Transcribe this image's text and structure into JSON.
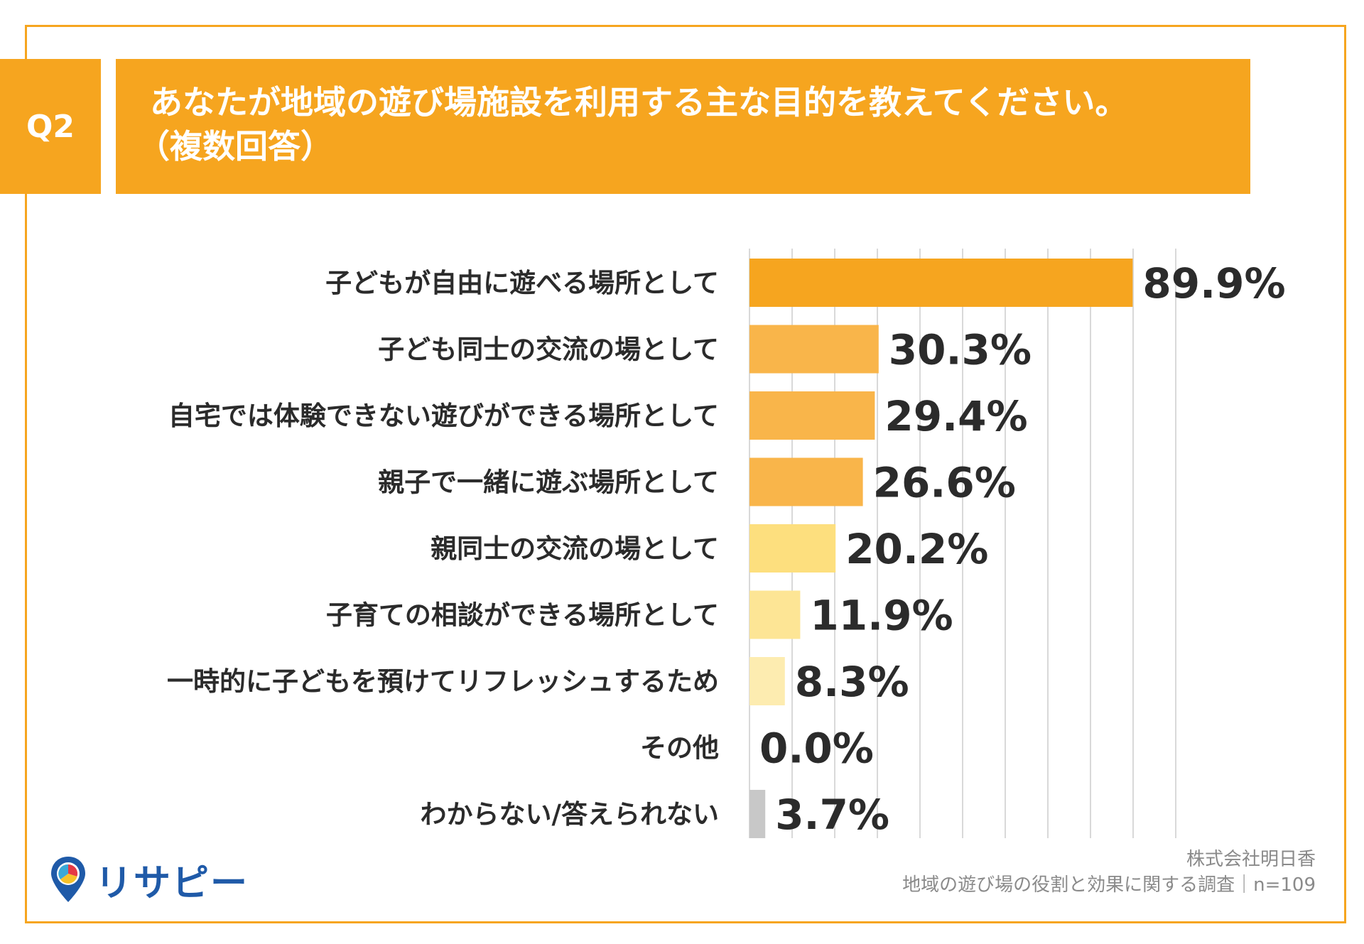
{
  "header": {
    "question_tag": "Q2",
    "title": "あなたが地域の遊び場施設を利用する主な目的を教えてください。",
    "subtitle": "（複数回答）"
  },
  "colors": {
    "frame": "#f6a51f",
    "header_bg": "#f6a51f",
    "gridline": "#d9d9d9",
    "bar_fills": [
      "#f6a51f",
      "#f9b54a",
      "#f9b54a",
      "#f9b54a",
      "#fddf7e",
      "#fde595",
      "#fdecb0",
      "#fdecb0",
      "#c8c8c8"
    ]
  },
  "chart_data": {
    "type": "bar",
    "orientation": "horizontal",
    "categories": [
      "子どもが自由に遊べる場所として",
      "子ども同士の交流の場として",
      "自宅では体験できない遊びができる場所として",
      "親子で一緒に遊ぶ場所として",
      "親同士の交流の場として",
      "子育ての相談ができる場所として",
      "一時的に子どもを預けてリフレッシュするため",
      "その他",
      "わからない/答えられない"
    ],
    "values": [
      89.9,
      30.3,
      29.4,
      26.6,
      20.2,
      11.9,
      8.3,
      0.0,
      3.7
    ],
    "value_labels": [
      "89.9%",
      "30.3%",
      "29.4%",
      "26.6%",
      "20.2%",
      "11.9%",
      "8.3%",
      "0.0%",
      "3.7%"
    ],
    "xlim": [
      0,
      100
    ],
    "grid": true,
    "legend": "none"
  },
  "footer": {
    "company": "株式会社明日香",
    "survey": "地域の遊び場の役割と効果に関する調査｜n=109"
  },
  "logo": {
    "text": "リサピー",
    "icon": "map-pin-pie-icon"
  }
}
